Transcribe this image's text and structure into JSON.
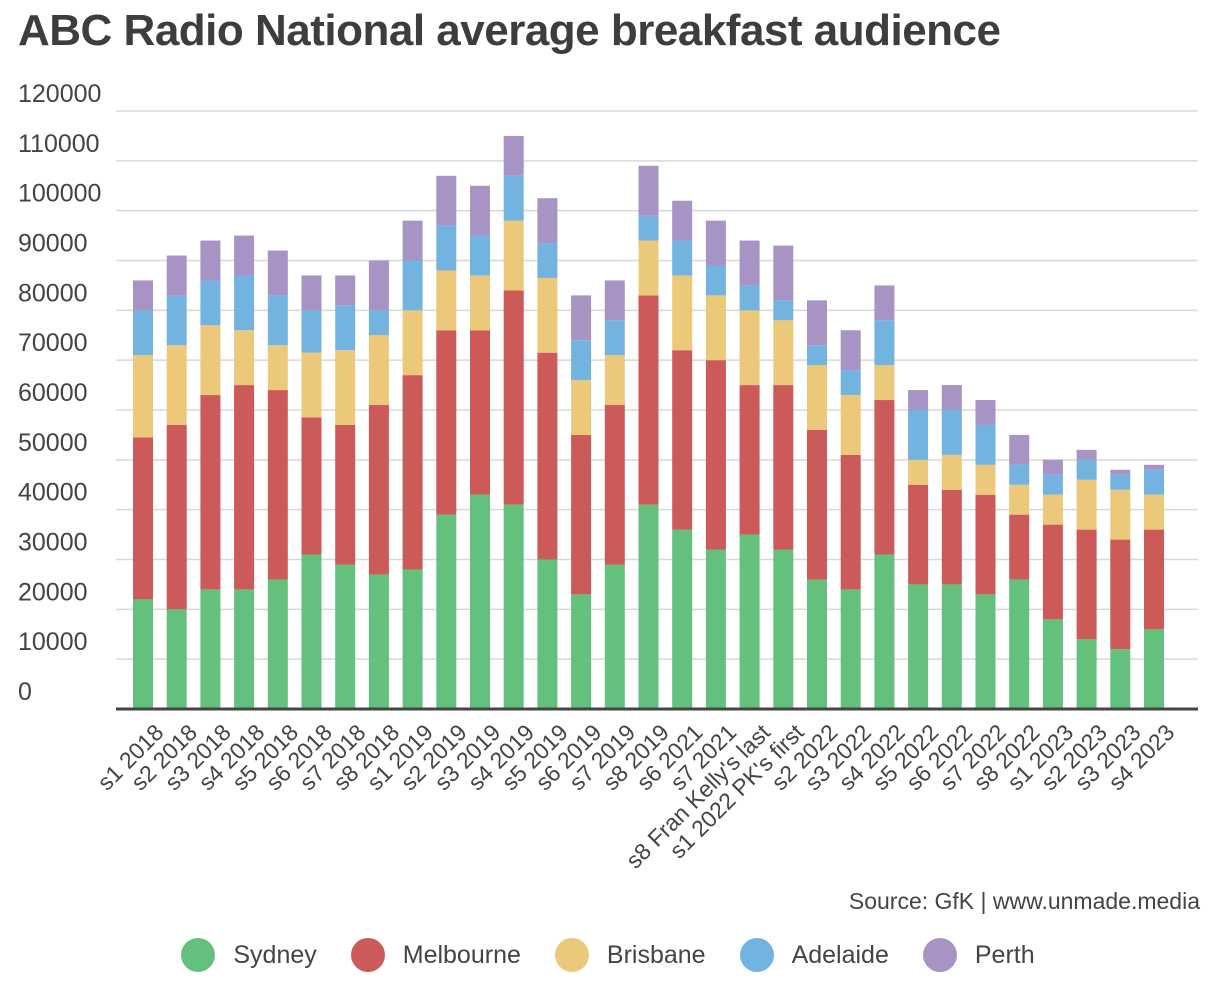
{
  "source": "Source: GfK | www.unmade.media",
  "chart_data": {
    "type": "bar",
    "stacked": true,
    "title": "ABC Radio National average breakfast audience",
    "xlabel": "",
    "ylabel": "",
    "ylim": [
      0,
      120000
    ],
    "yticks": [
      0,
      10000,
      20000,
      30000,
      40000,
      50000,
      60000,
      70000,
      80000,
      90000,
      100000,
      110000,
      120000
    ],
    "grid": true,
    "legend_position": "bottom",
    "categories": [
      "s1 2018",
      "s2 2018",
      "s3 2018",
      "s4 2018",
      "s5 2018",
      "s6 2018",
      "s7 2018",
      "s8 2018",
      "s1 2019",
      "s2 2019",
      "s3 2019",
      "s4 2019",
      "s5 2019",
      "s6 2019",
      "s7 2019",
      "s8 2019",
      "s6 2021",
      "s7 2021",
      "s8 Fran Kelly's last",
      "s1 2022 PK's first",
      "s2 2022",
      "s3 2022",
      "s4 2022",
      "s5 2022",
      "s6 2022",
      "s7 2022",
      "s8 2022",
      "s1 2023",
      "s2 2023",
      "s3 2023",
      "s4 2023"
    ],
    "series": [
      {
        "name": "Sydney",
        "color": "#63c17d",
        "values": [
          22000,
          20000,
          24000,
          24000,
          26000,
          31000,
          29000,
          27000,
          28000,
          39000,
          43000,
          41000,
          30000,
          23000,
          29000,
          41000,
          36000,
          32000,
          35000,
          32000,
          26000,
          24000,
          31000,
          25000,
          25000,
          23000,
          26000,
          18000,
          14000,
          12000,
          16000
        ]
      },
      {
        "name": "Melbourne",
        "color": "#cc5a58",
        "values": [
          32500,
          37000,
          39000,
          41000,
          38000,
          27500,
          28000,
          34000,
          39000,
          37000,
          33000,
          43000,
          41500,
          32000,
          32000,
          42000,
          36000,
          38000,
          30000,
          33000,
          30000,
          27000,
          31000,
          20000,
          19000,
          20000,
          13000,
          19000,
          22000,
          22000,
          20000
        ]
      },
      {
        "name": "Brisbane",
        "color": "#ecc97a",
        "values": [
          16500,
          16000,
          14000,
          11000,
          9000,
          13000,
          15000,
          14000,
          13000,
          12000,
          11000,
          14000,
          15000,
          11000,
          10000,
          11000,
          15000,
          13000,
          15000,
          13000,
          13000,
          12000,
          7000,
          5000,
          7000,
          6000,
          6000,
          6000,
          10000,
          10000,
          7000
        ]
      },
      {
        "name": "Adelaide",
        "color": "#72b3e0",
        "values": [
          9000,
          10000,
          9000,
          11000,
          10000,
          8500,
          9000,
          5000,
          10000,
          9000,
          8000,
          9000,
          7000,
          8000,
          7000,
          5000,
          7000,
          6000,
          5000,
          4000,
          4000,
          5000,
          9000,
          10000,
          9000,
          8000,
          4000,
          4000,
          4000,
          3000,
          5000
        ]
      },
      {
        "name": "Perth",
        "color": "#a793c4",
        "values": [
          6000,
          8000,
          8000,
          8000,
          9000,
          7000,
          6000,
          10000,
          8000,
          10000,
          10000,
          8000,
          9000,
          9000,
          8000,
          10000,
          8000,
          9000,
          9000,
          11000,
          9000,
          8000,
          7000,
          4000,
          5000,
          5000,
          6000,
          3000,
          2000,
          1000,
          1000
        ]
      }
    ]
  }
}
